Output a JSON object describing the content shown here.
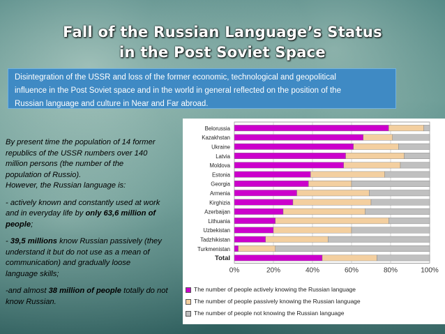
{
  "slide": {
    "title_line1": "Fall of the Russian Language’s Status",
    "title_line2": "in the Post Soviet Space",
    "intro_line1": "Disintegration of the USSR and loss of the former economic, technological and geopolitical",
    "intro_line2": "influence in the Post Soviet space and in the world in general reflected on the position of the",
    "intro_line3": "Russian language and culture in Near and Far abroad.",
    "para1_line1": "By present time the population of 14 former",
    "para1_line2": "republics of the USSR numbers over 140",
    "para1_line3": "million persons (the number of the",
    "para1_line4": "population of Russio).",
    "para1_line5": "However, the Russian language is:",
    "para2_line1": "- actively known and constantly used at work",
    "para2_line2a": "and in everyday life by ",
    "para2_line2b": "only 63,6 million of",
    "para2_line3a": "people",
    "para2_line3b": ";",
    "para3_line1a": "- ",
    "para3_line1b": "39,5 millions",
    "para3_line1c": " know Russian passively (they",
    "para3_line2": "understand it but do not use as a mean of",
    "para3_line3": " communication) and gradually loose",
    "para3_line4": "language skills;",
    "para4_line1a": "-and almost ",
    "para4_line1b": "38 million of people",
    "para4_line1c": " totally do not",
    "para4_line2": "know Russian."
  },
  "chart_data": {
    "type": "bar",
    "orientation": "horizontal",
    "stacked": true,
    "categories": [
      "Belorussia",
      "Kazakhstan",
      "Ukraine",
      "Latvia",
      "Moldova",
      "Estonia",
      "Georgia",
      "Armenia",
      "Kirghizia",
      "Azerbaijan",
      "Lithuania",
      "Uzbekistan",
      "Tadzhikistan",
      "Turkmenistan",
      "Total"
    ],
    "series": [
      {
        "name": "The number of people actively knowing the Russian language",
        "color": "#cc00cc",
        "values": [
          79,
          66,
          61,
          57,
          56,
          39,
          38,
          32,
          30,
          25,
          21,
          20,
          16,
          2,
          45
        ]
      },
      {
        "name": "The number of people passively knowing the Russian language",
        "color": "#f3cfa0",
        "values": [
          18,
          15,
          23,
          30,
          29,
          38,
          22,
          37,
          40,
          42,
          58,
          40,
          32,
          19,
          28
        ]
      },
      {
        "name": "The number of people not knowing the Russian language",
        "color": "#c0c0c0",
        "values": [
          3,
          19,
          16,
          13,
          15,
          23,
          40,
          31,
          30,
          33,
          21,
          40,
          52,
          79,
          27
        ]
      }
    ],
    "x_ticks": [
      "0%",
      "20%",
      "40%",
      "60%",
      "80%",
      "100%"
    ],
    "xlim": [
      0,
      100
    ],
    "grid": true,
    "legend_position": "bottom"
  }
}
